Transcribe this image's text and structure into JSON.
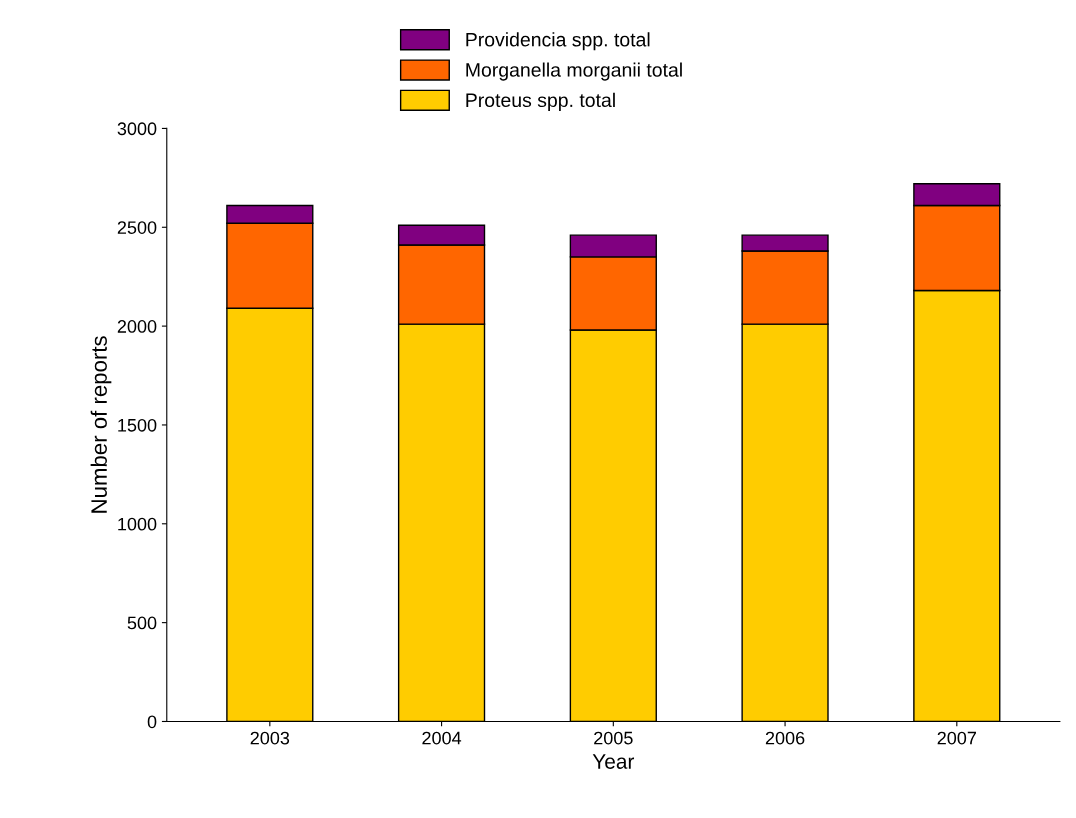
{
  "chart_data": {
    "type": "bar",
    "stacked": true,
    "xlabel": "Year",
    "ylabel": "Number of reports",
    "categories": [
      "2003",
      "2004",
      "2005",
      "2006",
      "2007"
    ],
    "series": [
      {
        "name": "Proteus spp. total",
        "color": "#ffcc00",
        "values": [
          2090,
          2010,
          1980,
          2010,
          2180
        ]
      },
      {
        "name": "Morganella morganii total",
        "color": "#ff6600",
        "values": [
          430,
          400,
          370,
          370,
          430
        ]
      },
      {
        "name": "Providencia spp. total",
        "color": "#800080",
        "values": [
          90,
          100,
          110,
          80,
          110
        ]
      }
    ],
    "ylim": [
      0,
      3000
    ],
    "yticks": [
      0,
      500,
      1000,
      1500,
      2000,
      2500,
      3000
    ],
    "grid": false,
    "legend": "top"
  }
}
